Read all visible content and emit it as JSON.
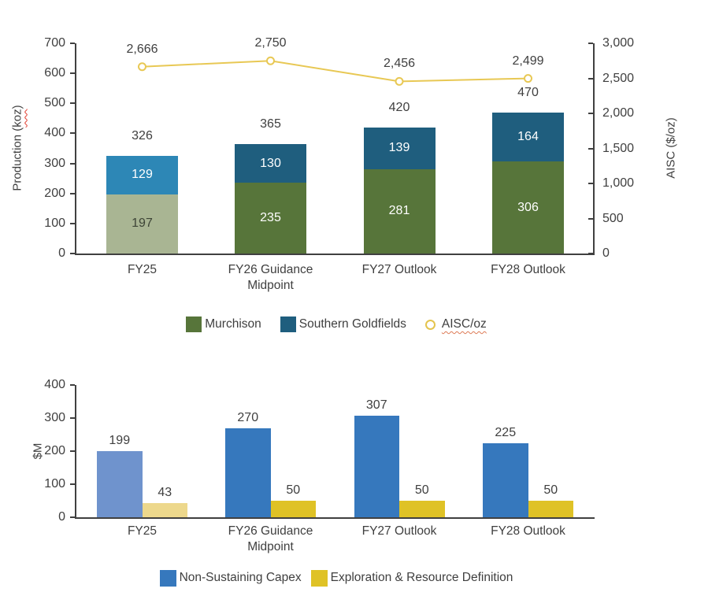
{
  "chart_data": [
    {
      "type": "combo-stacked-bar-line",
      "title": "",
      "categories": [
        "FY25",
        "FY26 Guidance\nMidpoint",
        "FY27 Outlook",
        "FY28 Outlook"
      ],
      "bar_mode": "stacked",
      "series": [
        {
          "name": "Murchison",
          "type": "bar",
          "axis": "left",
          "values": [
            197,
            235,
            281,
            306
          ],
          "colors": [
            "#a9b593",
            "#57753a",
            "#57753a",
            "#57753a"
          ],
          "value_label_colors": [
            "#3d4436",
            "#ffffff",
            "#ffffff",
            "#ffffff"
          ]
        },
        {
          "name": "Southern Goldfields",
          "type": "bar",
          "axis": "left",
          "values": [
            129,
            130,
            139,
            164
          ],
          "colors": [
            "#2d87b6",
            "#1f5e7e",
            "#1f5e7e",
            "#1f5e7e"
          ],
          "value_label_colors": [
            "#ffffff",
            "#ffffff",
            "#ffffff",
            "#ffffff"
          ]
        },
        {
          "name": "AISC/oz",
          "type": "line",
          "axis": "right",
          "values": [
            2666,
            2750,
            2456,
            2499
          ],
          "value_labels": [
            "2,666",
            "2,750",
            "2,456",
            "2,499"
          ],
          "color": "#e8c854",
          "marker_fill": "#ffffff"
        }
      ],
      "stack_totals": [
        "326",
        "365",
        "420",
        "470"
      ],
      "left_axis": {
        "title": "Production (koz)",
        "title_parts": {
          "prefix": "Production (",
          "word": "koz",
          "suffix": ")"
        },
        "min": 0,
        "max": 700,
        "step": 100,
        "tick_labels": [
          "0",
          "100",
          "200",
          "300",
          "400",
          "500",
          "600",
          "700"
        ]
      },
      "right_axis": {
        "title": "AISC ($/oz)",
        "min": 0,
        "max": 3000,
        "step": 500,
        "tick_labels": [
          "0",
          "500",
          "1,000",
          "1,500",
          "2,000",
          "2,500",
          "3,000"
        ]
      },
      "legend": [
        {
          "label": "Murchison",
          "swatch": "square",
          "color": "#57753a"
        },
        {
          "label": "Southern Goldfields",
          "swatch": "square",
          "color": "#1f5e7e"
        },
        {
          "label": "AISC/oz",
          "swatch": "ring",
          "color": "#e4c44e",
          "spellcheck_underline": true
        }
      ],
      "legend_position": "bottom",
      "grid": false
    },
    {
      "type": "grouped-bar",
      "title": "",
      "categories": [
        "FY25",
        "FY26 Guidance\nMidpoint",
        "FY27 Outlook",
        "FY28 Outlook"
      ],
      "bar_mode": "grouped",
      "series": [
        {
          "name": "Non-Sustaining Capex",
          "values": [
            199,
            270,
            307,
            225
          ],
          "colors": [
            "#6f93cd",
            "#3678bd",
            "#3678bd",
            "#3678bd"
          ]
        },
        {
          "name": "Exploration & Resource Definition",
          "values": [
            43,
            50,
            50,
            50
          ],
          "colors": [
            "#edd88c",
            "#dfc226",
            "#dfc226",
            "#dfc226"
          ]
        }
      ],
      "ylabel": "$M",
      "ylim": [
        0,
        400
      ],
      "step": 100,
      "tick_labels": [
        "0",
        "100",
        "200",
        "300",
        "400"
      ],
      "legend": [
        {
          "label": "Non-Sustaining Capex",
          "swatch": "square",
          "color": "#3678bd"
        },
        {
          "label": "Exploration & Resource Definition",
          "swatch": "square",
          "color": "#dfc226"
        }
      ],
      "legend_position": "bottom",
      "grid": false
    }
  ],
  "colors": {
    "axis": "#404040",
    "text": "#3f3f3f",
    "murchison": "#57753a",
    "murchison_fy25": "#a9b593",
    "southern_goldfields": "#1f5e7e",
    "southern_goldfields_fy25": "#2d87b6",
    "aisc_line": "#e8c854",
    "capex_blue": "#3678bd",
    "capex_blue_fy25": "#6f93cd",
    "exploration_yellow": "#dfc226",
    "exploration_yellow_fy25": "#edd88c"
  }
}
